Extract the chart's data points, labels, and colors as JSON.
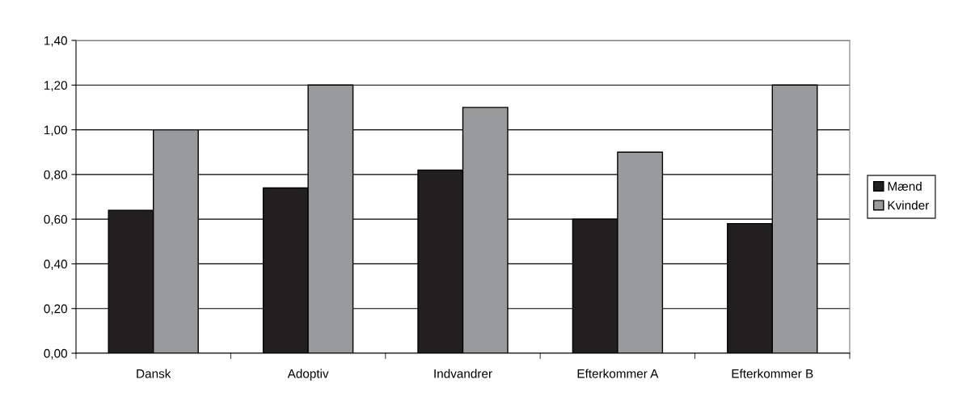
{
  "chart_data": {
    "type": "bar",
    "categories": [
      "Dansk",
      "Adoptiv",
      "Indvandrer",
      "Efterkommer A",
      "Efterkommer B"
    ],
    "series": [
      {
        "name": "Mænd",
        "color": "#231f20",
        "values": [
          0.64,
          0.74,
          0.82,
          0.6,
          0.58
        ]
      },
      {
        "name": "Kvinder",
        "color": "#999a9c",
        "values": [
          1.0,
          1.2,
          1.1,
          0.9,
          1.2
        ]
      }
    ],
    "ylim": [
      0,
      1.4
    ],
    "yticks": [
      {
        "value": 0,
        "label": "0,00"
      },
      {
        "value": 0.2,
        "label": "0,20"
      },
      {
        "value": 0.4,
        "label": "0,40"
      },
      {
        "value": 0.6,
        "label": "0,60"
      },
      {
        "value": 0.8,
        "label": "0,80"
      },
      {
        "value": 1.0,
        "label": "1,00"
      },
      {
        "value": 1.2,
        "label": "1,20"
      },
      {
        "value": 1.4,
        "label": "1,40"
      }
    ],
    "grid": "y",
    "legend": "right"
  }
}
